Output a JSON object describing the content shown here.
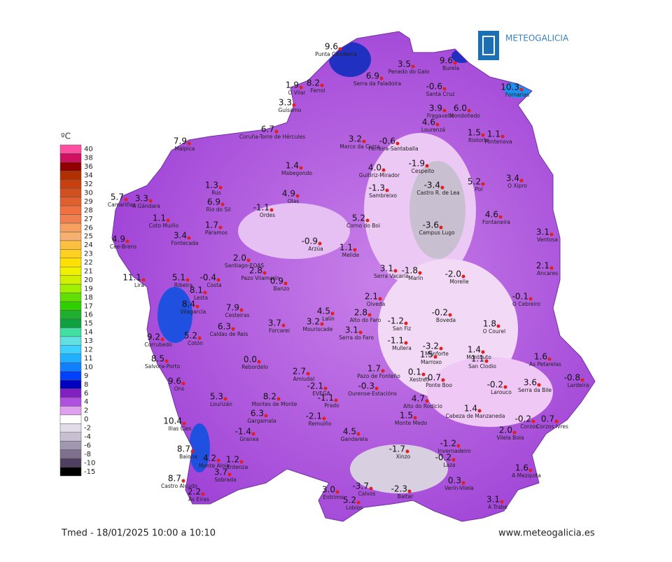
{
  "header": {
    "logo": "METEOGALICIA"
  },
  "legend": {
    "unit": "ºC",
    "ticks": [
      40,
      38,
      36,
      34,
      32,
      30,
      29,
      28,
      27,
      26,
      25,
      24,
      23,
      22,
      21,
      20,
      19,
      18,
      17,
      16,
      15,
      14,
      13,
      12,
      11,
      10,
      9,
      8,
      6,
      4,
      2,
      0,
      -2,
      -4,
      -6,
      -8,
      -10,
      -15
    ],
    "colors": [
      "#ff4fa0",
      "#d01060",
      "#900000",
      "#b03000",
      "#c84010",
      "#d05020",
      "#e06030",
      "#f07040",
      "#f08050",
      "#f8a060",
      "#f8b070",
      "#fcc040",
      "#ffd020",
      "#ffe000",
      "#f0f000",
      "#d0f000",
      "#a0f000",
      "#60e000",
      "#30d000",
      "#20b030",
      "#10a040",
      "#40e0a0",
      "#60e0e0",
      "#40d0ff",
      "#20b0ff",
      "#1080ff",
      "#0040ff",
      "#0000c0",
      "#8020c0",
      "#b050e0",
      "#e0a0f0",
      "#ffffff",
      "#e0dce8",
      "#c8c0d0",
      "#a098b0",
      "#807090",
      "#504060",
      "#000000"
    ]
  },
  "stations": [
    {
      "name": "Punta Candieira",
      "value": "9.6"
    },
    {
      "name": "Penedo do Galo",
      "value": "3.5"
    },
    {
      "name": "Burela",
      "value": "9.6"
    },
    {
      "name": "Serra da Faladoira",
      "value": "6.9"
    },
    {
      "name": "O Vilar",
      "value": "1.9"
    },
    {
      "name": "Ferrol",
      "value": "8.2"
    },
    {
      "name": "Santa Cruz",
      "value": "-0.6"
    },
    {
      "name": "Fornarias",
      "value": "10.3"
    },
    {
      "name": "Guísamo",
      "value": "3.3"
    },
    {
      "name": "Coruña-Torre de Hércules",
      "value": "6.7"
    },
    {
      "name": "Fragavella",
      "value": "3.9"
    },
    {
      "name": "Mondoñedo",
      "value": "6.0"
    },
    {
      "name": "Lourenzá",
      "value": "4.6"
    },
    {
      "name": "Riotorto",
      "value": "1.5"
    },
    {
      "name": "Pontenova",
      "value": "1.1"
    },
    {
      "name": "Malpica",
      "value": "7.9"
    },
    {
      "name": "Marco da Curra",
      "value": "3.2"
    },
    {
      "name": "Ferreira-Santaballa",
      "value": "-0.6"
    },
    {
      "name": "Mabegondo",
      "value": "1.4"
    },
    {
      "name": "Guitiriz-Mirador",
      "value": "4.0"
    },
    {
      "name": "Cespeito",
      "value": "-1.9"
    },
    {
      "name": "Rus",
      "value": "1.3"
    },
    {
      "name": "Olas",
      "value": "4.9"
    },
    {
      "name": "Sambreixo",
      "value": "-1.3"
    },
    {
      "name": "Castro R. de Lea",
      "value": "-3.4"
    },
    {
      "name": "Pol",
      "value": "5.2"
    },
    {
      "name": "O Xipro",
      "value": "3.4"
    },
    {
      "name": "Camariñas",
      "value": "5.7"
    },
    {
      "name": "A Gándara",
      "value": "3.3"
    },
    {
      "name": "Rio do Sil",
      "value": "6.9"
    },
    {
      "name": "Ordes",
      "value": "-1.1"
    },
    {
      "name": "Corno do Boi",
      "value": "5.2"
    },
    {
      "name": "Campus Lugo",
      "value": "-3.6"
    },
    {
      "name": "Fontaneira",
      "value": "4.6"
    },
    {
      "name": "Coto Muiño",
      "value": "1.1"
    },
    {
      "name": "Páramos",
      "value": "1.7"
    },
    {
      "name": "Fontecada",
      "value": "3.4"
    },
    {
      "name": "Ventosa",
      "value": "3.1"
    },
    {
      "name": "Cee-Brens",
      "value": "4.9"
    },
    {
      "name": "Arzúa",
      "value": "-0.9"
    },
    {
      "name": "Melide",
      "value": "1.1"
    },
    {
      "name": "Santiago-EOAS",
      "value": "2.0"
    },
    {
      "name": "Pazo Vilamarín",
      "value": "2.8"
    },
    {
      "name": "Banzo",
      "value": "0.9"
    },
    {
      "name": "Serra Vacaria",
      "value": "3.1"
    },
    {
      "name": "Marín",
      "value": "-1.8"
    },
    {
      "name": "Morelle",
      "value": "-2.0"
    },
    {
      "name": "Ancares",
      "value": "2.1"
    },
    {
      "name": "Lira",
      "value": "11.1"
    },
    {
      "name": "Ribeira",
      "value": "5.1"
    },
    {
      "name": "Costa",
      "value": "-0.4"
    },
    {
      "name": "Lesta",
      "value": "8.1"
    },
    {
      "name": "O Cebreiro",
      "value": "-0.1"
    },
    {
      "name": "Oiveda",
      "value": "2.1"
    },
    {
      "name": "Vilagarcía",
      "value": "8.4"
    },
    {
      "name": "Cesteiras",
      "value": "7.9"
    },
    {
      "name": "Lalín",
      "value": "4.5"
    },
    {
      "name": "Alto do Faro",
      "value": "2.8"
    },
    {
      "name": "Boveda",
      "value": "-0.2"
    },
    {
      "name": "San Fiz",
      "value": "-1.2"
    },
    {
      "name": "Caldas de Reis",
      "value": "6.3"
    },
    {
      "name": "Forcarei",
      "value": "3.7"
    },
    {
      "name": "Mouriscade",
      "value": "3.2"
    },
    {
      "name": "Serra do Faro",
      "value": "3.1"
    },
    {
      "name": "O Courel",
      "value": "1.8"
    },
    {
      "name": "Corrubedo",
      "value": "9.2"
    },
    {
      "name": "Cotón",
      "value": "5.2"
    },
    {
      "name": "Mullera",
      "value": "-1.1"
    },
    {
      "name": "Monforte",
      "value": "-3.2"
    },
    {
      "name": "Montouto",
      "value": "1.4"
    },
    {
      "name": "As Petarelas",
      "value": "1.6"
    },
    {
      "name": "Salvora-Porto",
      "value": "8.5"
    },
    {
      "name": "Rebordelo",
      "value": "0.0"
    },
    {
      "name": "Marroxo",
      "value": "1.5"
    },
    {
      "name": "San Clodio",
      "value": "1.1"
    },
    {
      "name": "Lardeira",
      "value": "-0.8"
    },
    {
      "name": "Amiudal",
      "value": "2.7"
    },
    {
      "name": "Pazo de Fonteño",
      "value": "1.7"
    },
    {
      "name": "Xestreo",
      "value": "0.1"
    },
    {
      "name": "Ponte Boo",
      "value": "-0.7"
    },
    {
      "name": "Ons",
      "value": "9.6"
    },
    {
      "name": "Larouco",
      "value": "-0.2"
    },
    {
      "name": "Serra da Bile",
      "value": "3.6"
    },
    {
      "name": "EVEGA",
      "value": "-2.1"
    },
    {
      "name": "Ourense-Estacións",
      "value": "-0.3"
    },
    {
      "name": "Alto do Rodicio",
      "value": "4.7"
    },
    {
      "name": "Lourizán",
      "value": "5.3"
    },
    {
      "name": "Montes de Monte",
      "value": "8.2"
    },
    {
      "name": "Prado",
      "value": "-1.1"
    },
    {
      "name": "Cabeza de Manzaneda",
      "value": "1.4"
    },
    {
      "name": "Gargamala",
      "value": "6.3"
    },
    {
      "name": "Remuiño",
      "value": "-2.1"
    },
    {
      "name": "Monte Medo",
      "value": "1.5"
    },
    {
      "name": "Corzos",
      "value": "-0.2"
    },
    {
      "name": "Corzos Ivres",
      "value": "0.7"
    },
    {
      "name": "Illas Cíes",
      "value": "10.4"
    },
    {
      "name": "Gandarela",
      "value": "4.5"
    },
    {
      "name": "Granxa",
      "value": "-1.4"
    },
    {
      "name": "Vilela Bola",
      "value": "2.0"
    },
    {
      "name": "Invernadeiro",
      "value": "-1.2"
    },
    {
      "name": "Baiona",
      "value": "8.7"
    },
    {
      "name": "Xinzo",
      "value": "-1.7"
    },
    {
      "name": "Monte Aloia",
      "value": "4.2"
    },
    {
      "name": "Entenza",
      "value": "1.2"
    },
    {
      "name": "Laza",
      "value": "-0.2"
    },
    {
      "name": "A Mezquita",
      "value": "1.6"
    },
    {
      "name": "Sobrada",
      "value": "3.7"
    },
    {
      "name": "Castro Alcudo",
      "value": "8.7"
    },
    {
      "name": "Verín-Vilela",
      "value": "0.3"
    },
    {
      "name": "Calvos",
      "value": "-3.7"
    },
    {
      "name": "Baltar",
      "value": "-2.3"
    },
    {
      "name": "Entrimo",
      "value": "3.0"
    },
    {
      "name": "As Eiras",
      "value": "2.2"
    },
    {
      "name": "A Trabe",
      "value": "3.1"
    },
    {
      "name": "Lobios",
      "value": "5.2"
    }
  ],
  "footer": {
    "caption": "Tmed - 18/01/2025 10:00 a 10:10",
    "url": "www.meteogalicia.es"
  }
}
